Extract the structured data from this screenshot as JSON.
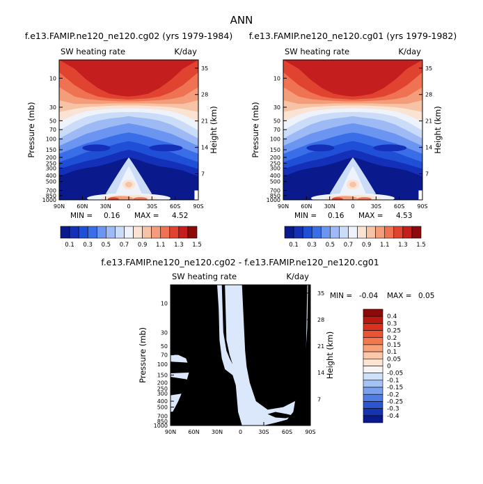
{
  "page": {
    "title": "ANN"
  },
  "chart_data": [
    {
      "type": "heatmap",
      "title": "f.e13.FAMIP.ne120_ne120.cg02 (yrs 1979-1984)",
      "subtitle_left": "SW heating rate",
      "subtitle_right": "K/day",
      "ylabel": "Pressure (mb)",
      "y2label": "Height (km)",
      "x_ticks": [
        "90N",
        "60N",
        "30N",
        "0",
        "30S",
        "60S",
        "90S"
      ],
      "y_ticks": [
        "10",
        "30",
        "50",
        "70",
        "100",
        "150",
        "200",
        "250",
        "300",
        "400",
        "500",
        "700",
        "850",
        "1000"
      ],
      "y2_ticks": [
        "35",
        "28",
        "21",
        "14",
        "7"
      ],
      "min_label": "MIN =",
      "min_value": "0.16",
      "max_label": "MAX =",
      "max_value": "4.52",
      "colorbar_labels": [
        "0.1",
        "0.3",
        "0.5",
        "0.7",
        "0.9",
        "1.1",
        "1.3",
        "1.5"
      ],
      "colorbar_colors": [
        "#0a1a8c",
        "#1530b8",
        "#1f4fd6",
        "#3a6ee8",
        "#6b95f0",
        "#9dbaf5",
        "#cbdcf8",
        "#eef2fa",
        "#fbe3d4",
        "#f7c3a6",
        "#f49d7a",
        "#ef7352",
        "#e04430",
        "#c41e1e",
        "#8c0a0a"
      ]
    },
    {
      "type": "heatmap",
      "title": "f.e13.FAMIP.ne120_ne120.cg01 (yrs 1979-1982)",
      "subtitle_left": "SW heating rate",
      "subtitle_right": "K/day",
      "ylabel": "Pressure (mb)",
      "y2label": "Height (km)",
      "x_ticks": [
        "90N",
        "60N",
        "30N",
        "0",
        "30S",
        "60S",
        "90S"
      ],
      "y_ticks": [
        "10",
        "30",
        "50",
        "70",
        "100",
        "150",
        "200",
        "250",
        "300",
        "400",
        "500",
        "700",
        "850",
        "1000"
      ],
      "y2_ticks": [
        "35",
        "28",
        "21",
        "14",
        "7"
      ],
      "min_label": "MIN =",
      "min_value": "0.16",
      "max_label": "MAX =",
      "max_value": "4.53",
      "colorbar_labels": [
        "0.1",
        "0.3",
        "0.5",
        "0.7",
        "0.9",
        "1.1",
        "1.3",
        "1.5"
      ]
    },
    {
      "type": "heatmap",
      "title": "f.e13.FAMIP.ne120_ne120.cg02 - f.e13.FAMIP.ne120_ne120.cg01",
      "subtitle_left": "SW heating rate",
      "subtitle_right": "K/day",
      "ylabel": "Pressure (mb)",
      "y2label": "Height (km)",
      "x_ticks": [
        "90N",
        "60N",
        "30N",
        "0",
        "30S",
        "60S",
        "90S"
      ],
      "y_ticks": [
        "10",
        "30",
        "50",
        "70",
        "100",
        "150",
        "200",
        "250",
        "300",
        "400",
        "500",
        "700",
        "850",
        "1000"
      ],
      "y2_ticks": [
        "35",
        "28",
        "21",
        "14",
        "7"
      ],
      "min_label": "MIN =",
      "min_value": "-0.04",
      "max_label": "MAX =",
      "max_value": "0.05",
      "colorbar_labels": [
        "0.4",
        "0.3",
        "0.25",
        "0.2",
        "0.15",
        "0.1",
        "0.05",
        "0",
        "-0.05",
        "-0.1",
        "-0.15",
        "-0.2",
        "-0.25",
        "-0.3",
        "-0.4"
      ],
      "colorbar_colors": [
        "#8c0a0a",
        "#b81a12",
        "#d8321e",
        "#ea5434",
        "#f3774f",
        "#f7a07a",
        "#fac8ab",
        "#fde4d3",
        "#f5f5f5",
        "#cfe0f8",
        "#a4c2f3",
        "#7aa0ee",
        "#4f7ce5",
        "#2c56cf",
        "#1634b0",
        "#0a1a8c"
      ]
    }
  ]
}
